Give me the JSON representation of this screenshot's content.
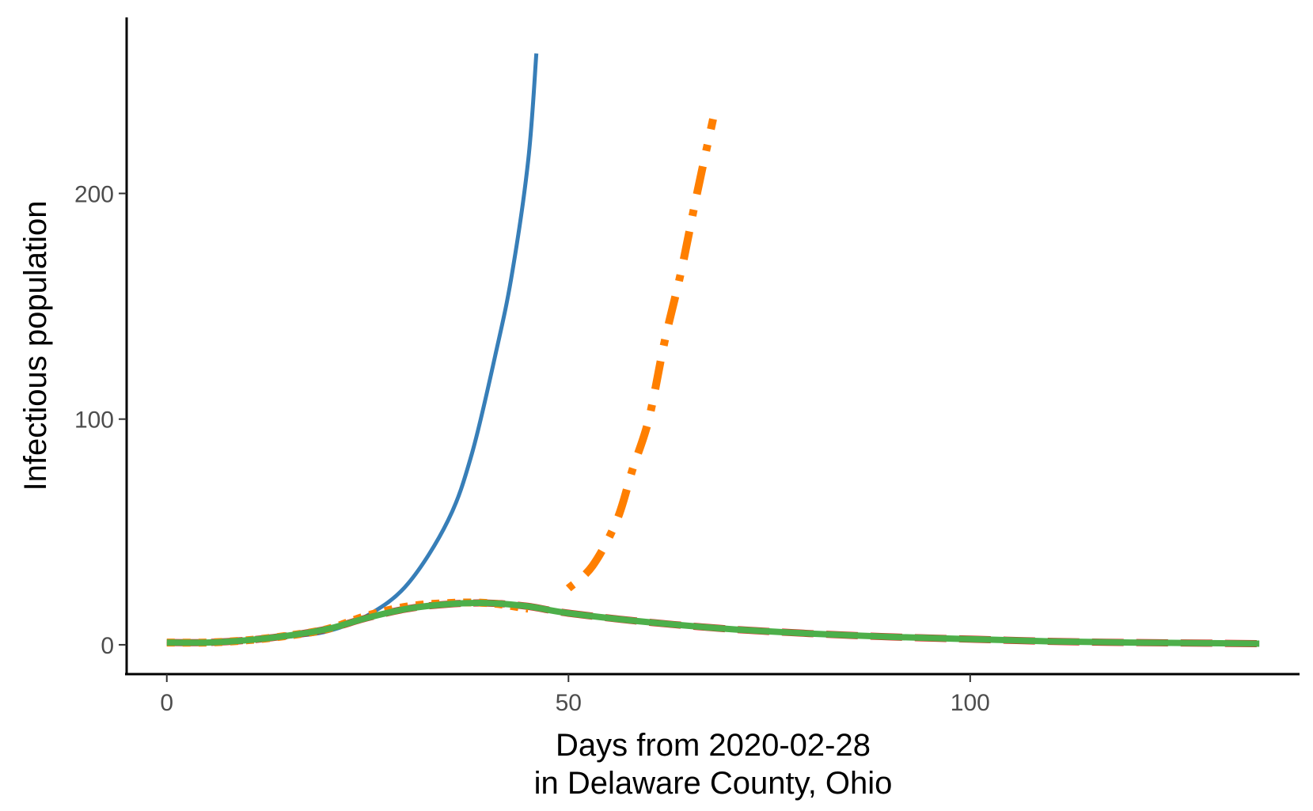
{
  "chart_data": {
    "type": "line",
    "xlabel_lines": [
      "Days from 2020-02-28",
      "in Delaware County, Ohio"
    ],
    "ylabel": "Infectious population",
    "xlim": [
      -5,
      141
    ],
    "ylim": [
      -13,
      278
    ],
    "x_ticks": [
      0,
      50,
      100
    ],
    "y_ticks": [
      0,
      100,
      200
    ],
    "grid": false,
    "series": [
      {
        "color": "#377eb8",
        "dash": "solid",
        "width": 5,
        "points": [
          [
            0,
            0.5
          ],
          [
            5,
            1
          ],
          [
            10,
            2
          ],
          [
            15,
            3.5
          ],
          [
            20,
            6
          ],
          [
            25,
            13
          ],
          [
            30,
            27
          ],
          [
            35,
            55
          ],
          [
            38,
            85
          ],
          [
            41,
            130
          ],
          [
            43,
            165
          ],
          [
            45,
            215
          ],
          [
            46,
            262
          ]
        ]
      },
      {
        "color": "#ff7f00",
        "dash": "dotdash",
        "width": 10,
        "points": [
          [
            50,
            25
          ],
          [
            53,
            35
          ],
          [
            56,
            55
          ],
          [
            58,
            78
          ],
          [
            60,
            100
          ],
          [
            62,
            135
          ],
          [
            64,
            165
          ],
          [
            66,
            200
          ],
          [
            68,
            233
          ]
        ]
      },
      {
        "color": "#e41a1c",
        "dash": "longdash",
        "width": 9,
        "points": [
          [
            0,
            1
          ],
          [
            5,
            1
          ],
          [
            10,
            2
          ],
          [
            15,
            4
          ],
          [
            20,
            7
          ],
          [
            25,
            12
          ],
          [
            30,
            16
          ],
          [
            35,
            18
          ],
          [
            40,
            18.5
          ],
          [
            45,
            17
          ],
          [
            50,
            14
          ],
          [
            60,
            10
          ],
          [
            70,
            7
          ],
          [
            80,
            5
          ],
          [
            90,
            3.5
          ],
          [
            100,
            2.5
          ],
          [
            110,
            1.5
          ],
          [
            120,
            1
          ],
          [
            130,
            0.7
          ],
          [
            136,
            0.5
          ]
        ]
      },
      {
        "color": "#ff7f00",
        "dash": "dotted",
        "width": 10,
        "points": [
          [
            0,
            1
          ],
          [
            5,
            1
          ],
          [
            10,
            2
          ],
          [
            15,
            4
          ],
          [
            20,
            7
          ],
          [
            25,
            13
          ],
          [
            30,
            17
          ],
          [
            35,
            18.5
          ],
          [
            40,
            18.5
          ],
          [
            45,
            16
          ]
        ]
      },
      {
        "color": "#4daf4a",
        "dash": "solid",
        "width": 8,
        "points": [
          [
            0,
            1
          ],
          [
            5,
            1
          ],
          [
            10,
            2
          ],
          [
            15,
            4
          ],
          [
            20,
            7
          ],
          [
            25,
            12
          ],
          [
            30,
            16
          ],
          [
            35,
            18
          ],
          [
            40,
            18.5
          ],
          [
            45,
            17
          ],
          [
            50,
            14
          ],
          [
            60,
            10
          ],
          [
            70,
            7
          ],
          [
            80,
            5
          ],
          [
            90,
            3.5
          ],
          [
            100,
            2.5
          ],
          [
            110,
            1.5
          ],
          [
            120,
            1
          ],
          [
            130,
            0.7
          ],
          [
            136,
            0.5
          ]
        ]
      }
    ]
  }
}
